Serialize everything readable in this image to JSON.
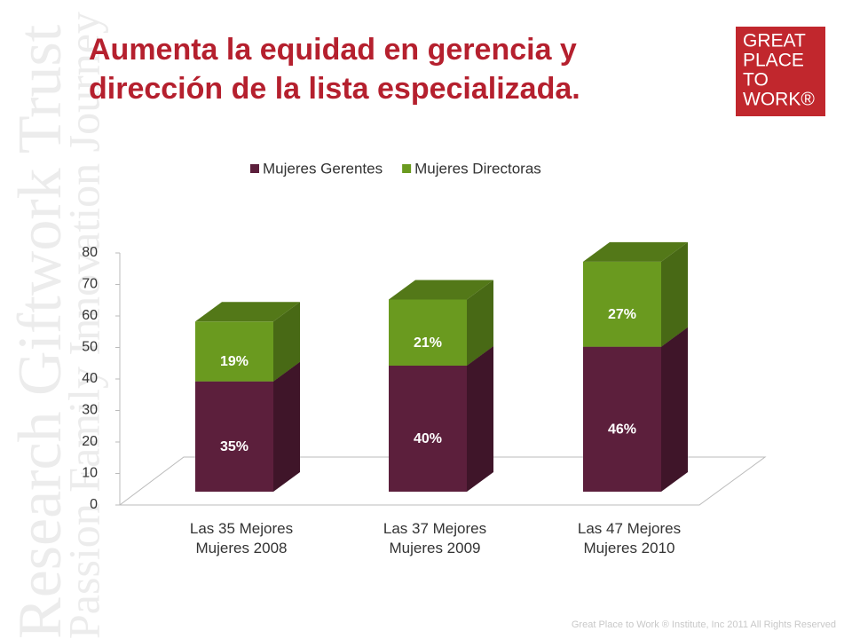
{
  "header": {
    "title_lines": [
      "Aumenta la equidad en gerencia y",
      "dirección de la lista especializada."
    ],
    "logo_lines": [
      "GREAT",
      "PLACE",
      "TO",
      "WORK®"
    ]
  },
  "watermark": [
    "Research Giftwork Trust",
    "Passion Family Innovation Journey"
  ],
  "footer": "Great Place to Work ® Institute, Inc 2011 All Rights Reserved",
  "chart_data": {
    "type": "stacked-bar-3d",
    "categories": [
      "Las 35 Mejores Mujeres 2008",
      "Las 37 Mejores Mujeres 2009",
      "Las 47 Mejores Mujeres 2010"
    ],
    "series": [
      {
        "name": "Mujeres Gerentes",
        "color": "#5c1f3c",
        "values": [
          35,
          40,
          46
        ],
        "value_labels": [
          "35%",
          "40%",
          "46%"
        ]
      },
      {
        "name": "Mujeres Directoras",
        "color": "#6a9a1f",
        "values": [
          19,
          21,
          27
        ],
        "value_labels": [
          "19%",
          "21%",
          "27%"
        ]
      }
    ],
    "ylim": [
      0,
      80
    ],
    "yticks": [
      0,
      10,
      20,
      30,
      40,
      50,
      60,
      70,
      80
    ],
    "grid": false,
    "legend": "top"
  }
}
